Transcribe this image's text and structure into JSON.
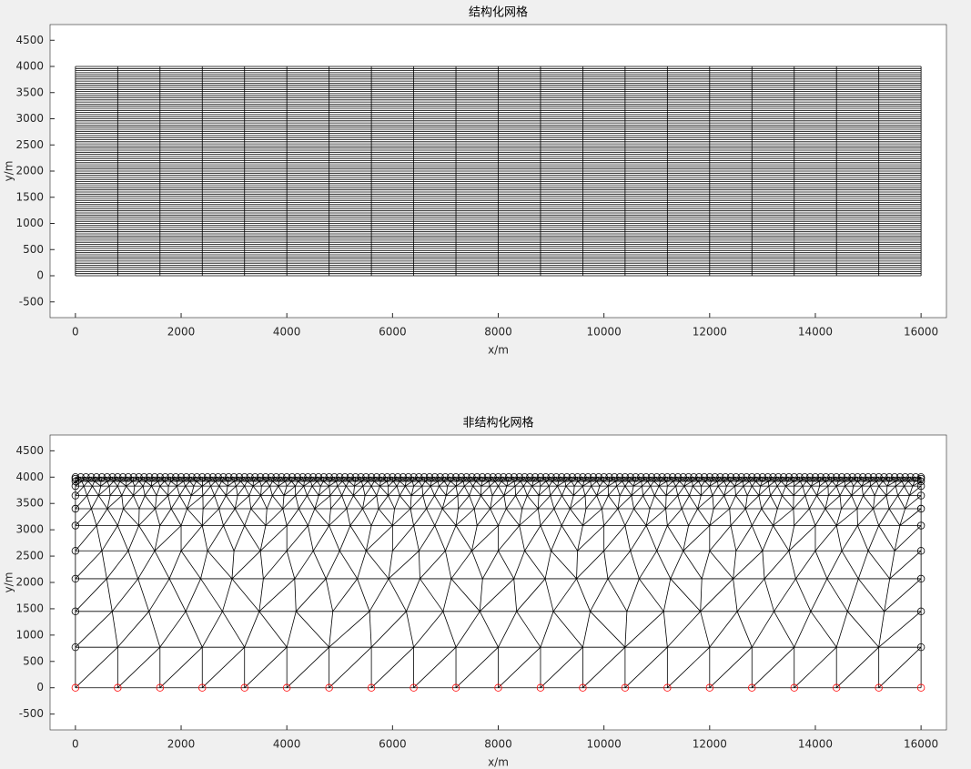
{
  "chart_data": [
    {
      "type": "structured_mesh",
      "title": "结构化网格",
      "xlabel": "x/m",
      "ylabel": "y/m",
      "xlim": [
        -480,
        16480
      ],
      "ylim": [
        -800,
        4800
      ],
      "xticks": [
        0,
        2000,
        4000,
        6000,
        8000,
        10000,
        12000,
        14000,
        16000
      ],
      "yticks": [
        -500,
        0,
        500,
        1000,
        1500,
        2000,
        2500,
        3000,
        3500,
        4000,
        4500
      ],
      "color": "#000000",
      "xgrid": [
        0,
        800,
        1600,
        2400,
        3200,
        4000,
        4800,
        5600,
        6400,
        7200,
        8000,
        8800,
        9600,
        10400,
        11200,
        12000,
        12800,
        13600,
        14400,
        15200,
        16000
      ],
      "ygrid": [
        0,
        40,
        80,
        120,
        160,
        200,
        240,
        280,
        320,
        360,
        400,
        440,
        480,
        520,
        560,
        600,
        640,
        680,
        720,
        760,
        800,
        840,
        880,
        920,
        960,
        1000,
        1040,
        1080,
        1120,
        1160,
        1200,
        1240,
        1280,
        1320,
        1360,
        1400,
        1440,
        1480,
        1520,
        1560,
        1600,
        1640,
        1680,
        1720,
        1760,
        1800,
        1840,
        1880,
        1920,
        1960,
        2000,
        2040,
        2080,
        2120,
        2160,
        2200,
        2240,
        2280,
        2320,
        2360,
        2400,
        2440,
        2480,
        2520,
        2560,
        2600,
        2640,
        2680,
        2720,
        2760,
        2800,
        2840,
        2880,
        2920,
        2960,
        3000,
        3040,
        3080,
        3120,
        3160,
        3200,
        3240,
        3280,
        3320,
        3360,
        3400,
        3440,
        3480,
        3520,
        3560,
        3600,
        3640,
        3680,
        3720,
        3760,
        3800,
        3840,
        3880,
        3920,
        3960,
        4000
      ]
    },
    {
      "type": "unstructured_mesh",
      "title": "非结构化网格",
      "xlabel": "x/m",
      "ylabel": "y/m",
      "xlim": [
        -480,
        16480
      ],
      "ylim": [
        -800,
        4800
      ],
      "xticks": [
        0,
        2000,
        4000,
        6000,
        8000,
        10000,
        12000,
        14000,
        16000
      ],
      "yticks": [
        -500,
        0,
        500,
        1000,
        1500,
        2000,
        2500,
        3000,
        3500,
        4000,
        4500
      ],
      "color": "#000000",
      "receiver_color": "#ff0000",
      "xrange": [
        0,
        16000
      ],
      "layers": [
        {
          "y": 0,
          "spacing": 800
        },
        {
          "y": 770,
          "spacing": 800
        },
        {
          "y": 1450,
          "spacing": 700
        },
        {
          "y": 2070,
          "spacing": 600
        },
        {
          "y": 2600,
          "spacing": 500
        },
        {
          "y": 3080,
          "spacing": 400
        },
        {
          "y": 3400,
          "spacing": 300
        },
        {
          "y": 3650,
          "spacing": 220
        },
        {
          "y": 3830,
          "spacing": 160
        },
        {
          "y": 3920,
          "spacing": 120
        },
        {
          "y": 3970,
          "spacing": 100
        },
        {
          "y": 4000,
          "spacing": 100
        }
      ]
    }
  ]
}
